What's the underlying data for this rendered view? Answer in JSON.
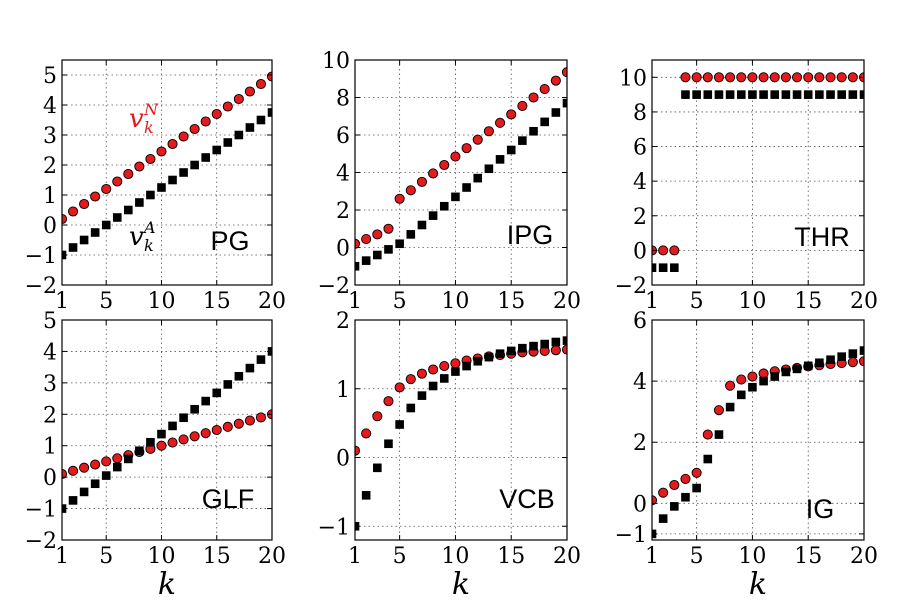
{
  "chart_data": [
    {
      "type": "scatter",
      "panel_label": "PG",
      "x": [
        1,
        2,
        3,
        4,
        5,
        6,
        7,
        8,
        9,
        10,
        11,
        12,
        13,
        14,
        15,
        16,
        17,
        18,
        19,
        20
      ],
      "series": [
        {
          "name": "v_k^N",
          "color": "#e41a1c",
          "marker": "circle",
          "values": [
            0.2,
            0.45,
            0.7,
            0.95,
            1.2,
            1.45,
            1.7,
            1.95,
            2.2,
            2.45,
            2.7,
            2.95,
            3.2,
            3.45,
            3.7,
            3.95,
            4.2,
            4.45,
            4.7,
            4.95
          ]
        },
        {
          "name": "v_k^A",
          "color": "#000000",
          "marker": "square",
          "values": [
            -1,
            -0.75,
            -0.5,
            -0.25,
            0,
            0.25,
            0.5,
            0.75,
            1,
            1.25,
            1.5,
            1.75,
            2,
            2.25,
            2.5,
            2.75,
            3,
            3.25,
            3.5,
            3.75
          ]
        }
      ],
      "xlim": [
        1,
        20
      ],
      "ylim": [
        -2,
        5.5
      ],
      "xticks": [
        "1",
        "5",
        "10",
        "15",
        "20"
      ],
      "yticks": [
        "−2",
        "−1",
        "0",
        "1",
        "2",
        "3",
        "4",
        "5"
      ],
      "xlabel": "",
      "annotations": [
        {
          "base": "v",
          "sub": "k",
          "sup": "N",
          "color": "#e41a1c"
        },
        {
          "base": "v",
          "sub": "k",
          "sup": "A",
          "color": "#000000"
        }
      ]
    },
    {
      "type": "scatter",
      "panel_label": "IPG",
      "x": [
        1,
        2,
        3,
        4,
        5,
        6,
        7,
        8,
        9,
        10,
        11,
        12,
        13,
        14,
        15,
        16,
        17,
        18,
        19,
        20
      ],
      "series": [
        {
          "name": "v_k^N",
          "color": "#e41a1c",
          "marker": "circle",
          "values": [
            0.2,
            0.45,
            0.7,
            1,
            2.6,
            3.05,
            3.5,
            3.95,
            4.4,
            4.85,
            5.3,
            5.75,
            6.2,
            6.65,
            7.1,
            7.55,
            8,
            8.45,
            8.9,
            9.35
          ]
        },
        {
          "name": "v_k^A",
          "color": "#000000",
          "marker": "square",
          "values": [
            -1,
            -0.7,
            -0.4,
            -0.1,
            0.2,
            0.7,
            1.2,
            1.7,
            2.2,
            2.7,
            3.2,
            3.7,
            4.2,
            4.7,
            5.2,
            5.7,
            6.2,
            6.7,
            7.2,
            7.7
          ]
        }
      ],
      "xlim": [
        1,
        20
      ],
      "ylim": [
        -2,
        10
      ],
      "xticks": [
        "1",
        "5",
        "10",
        "15",
        "20"
      ],
      "yticks": [
        "−2",
        "0",
        "2",
        "4",
        "6",
        "8",
        "10"
      ],
      "xlabel": ""
    },
    {
      "type": "scatter",
      "panel_label": "THR",
      "x": [
        1,
        2,
        3,
        4,
        5,
        6,
        7,
        8,
        9,
        10,
        11,
        12,
        13,
        14,
        15,
        16,
        17,
        18,
        19,
        20
      ],
      "series": [
        {
          "name": "v_k^N",
          "color": "#e41a1c",
          "marker": "circle",
          "values": [
            0,
            0,
            0,
            10,
            10,
            10,
            10,
            10,
            10,
            10,
            10,
            10,
            10,
            10,
            10,
            10,
            10,
            10,
            10,
            10
          ]
        },
        {
          "name": "v_k^A",
          "color": "#000000",
          "marker": "square",
          "values": [
            -1,
            -1,
            -1,
            9,
            9,
            9,
            9,
            9,
            9,
            9,
            9,
            9,
            9,
            9,
            9,
            9,
            9,
            9,
            9,
            9
          ]
        }
      ],
      "xlim": [
        1,
        20
      ],
      "ylim": [
        -2,
        11
      ],
      "xticks": [
        "1",
        "5",
        "10",
        "15",
        "20"
      ],
      "yticks": [
        "−2",
        "0",
        "2",
        "4",
        "6",
        "8",
        "10"
      ],
      "xlabel": ""
    },
    {
      "type": "scatter",
      "panel_label": "GLF",
      "x": [
        1,
        2,
        3,
        4,
        5,
        6,
        7,
        8,
        9,
        10,
        11,
        12,
        13,
        14,
        15,
        16,
        17,
        18,
        19,
        20
      ],
      "series": [
        {
          "name": "v_k^N",
          "color": "#e41a1c",
          "marker": "circle",
          "values": [
            0.1,
            0.2,
            0.3,
            0.4,
            0.5,
            0.6,
            0.7,
            0.8,
            0.9,
            1,
            1.1,
            1.2,
            1.3,
            1.4,
            1.5,
            1.6,
            1.7,
            1.8,
            1.9,
            2
          ]
        },
        {
          "name": "v_k^A",
          "color": "#000000",
          "marker": "square",
          "values": [
            -1,
            -0.74,
            -0.47,
            -0.21,
            0.05,
            0.32,
            0.58,
            0.84,
            1.11,
            1.37,
            1.63,
            1.89,
            2.16,
            2.42,
            2.68,
            2.95,
            3.21,
            3.47,
            3.74,
            4
          ]
        }
      ],
      "xlim": [
        1,
        20
      ],
      "ylim": [
        -2,
        5
      ],
      "xticks": [
        "1",
        "5",
        "10",
        "15",
        "20"
      ],
      "yticks": [
        "−2",
        "−1",
        "0",
        "1",
        "2",
        "3",
        "4",
        "5"
      ],
      "xlabel": "k"
    },
    {
      "type": "scatter",
      "panel_label": "VCB",
      "x": [
        1,
        2,
        3,
        4,
        5,
        6,
        7,
        8,
        9,
        10,
        11,
        12,
        13,
        14,
        15,
        16,
        17,
        18,
        19,
        20
      ],
      "series": [
        {
          "name": "v_k^N",
          "color": "#e41a1c",
          "marker": "circle",
          "values": [
            0.1,
            0.35,
            0.6,
            0.82,
            1.02,
            1.14,
            1.22,
            1.28,
            1.33,
            1.37,
            1.41,
            1.44,
            1.47,
            1.49,
            1.51,
            1.53,
            1.54,
            1.55,
            1.56,
            1.57
          ]
        },
        {
          "name": "v_k^A",
          "color": "#000000",
          "marker": "square",
          "values": [
            -1,
            -0.55,
            -0.15,
            0.2,
            0.48,
            0.72,
            0.9,
            1.04,
            1.15,
            1.25,
            1.33,
            1.4,
            1.46,
            1.51,
            1.55,
            1.59,
            1.62,
            1.65,
            1.68,
            1.7
          ]
        }
      ],
      "xlim": [
        1,
        20
      ],
      "ylim": [
        -1.2,
        2
      ],
      "xticks": [
        "1",
        "5",
        "10",
        "15",
        "20"
      ],
      "yticks": [
        "−1",
        "0",
        "1",
        "2"
      ],
      "xlabel": "k"
    },
    {
      "type": "scatter",
      "panel_label": "IG",
      "x": [
        1,
        2,
        3,
        4,
        5,
        6,
        7,
        8,
        9,
        10,
        11,
        12,
        13,
        14,
        15,
        16,
        17,
        18,
        19,
        20
      ],
      "series": [
        {
          "name": "v_k^N",
          "color": "#e41a1c",
          "marker": "circle",
          "values": [
            0.1,
            0.35,
            0.6,
            0.8,
            1,
            2.25,
            3.05,
            3.85,
            4.05,
            4.15,
            4.25,
            4.32,
            4.38,
            4.43,
            4.48,
            4.52,
            4.56,
            4.59,
            4.62,
            4.65
          ]
        },
        {
          "name": "v_k^A",
          "color": "#000000",
          "marker": "square",
          "values": [
            -1,
            -0.5,
            -0.1,
            0.2,
            0.5,
            1.45,
            2.25,
            3.15,
            3.55,
            3.8,
            4,
            4.15,
            4.3,
            4.4,
            4.5,
            4.6,
            4.7,
            4.8,
            4.9,
            5
          ]
        }
      ],
      "xlim": [
        1,
        20
      ],
      "ylim": [
        -1.2,
        6
      ],
      "xticks": [
        "1",
        "5",
        "10",
        "15",
        "20"
      ],
      "yticks": [
        "−1",
        "0",
        "2",
        "4",
        "6"
      ],
      "xlabel": "k"
    }
  ]
}
